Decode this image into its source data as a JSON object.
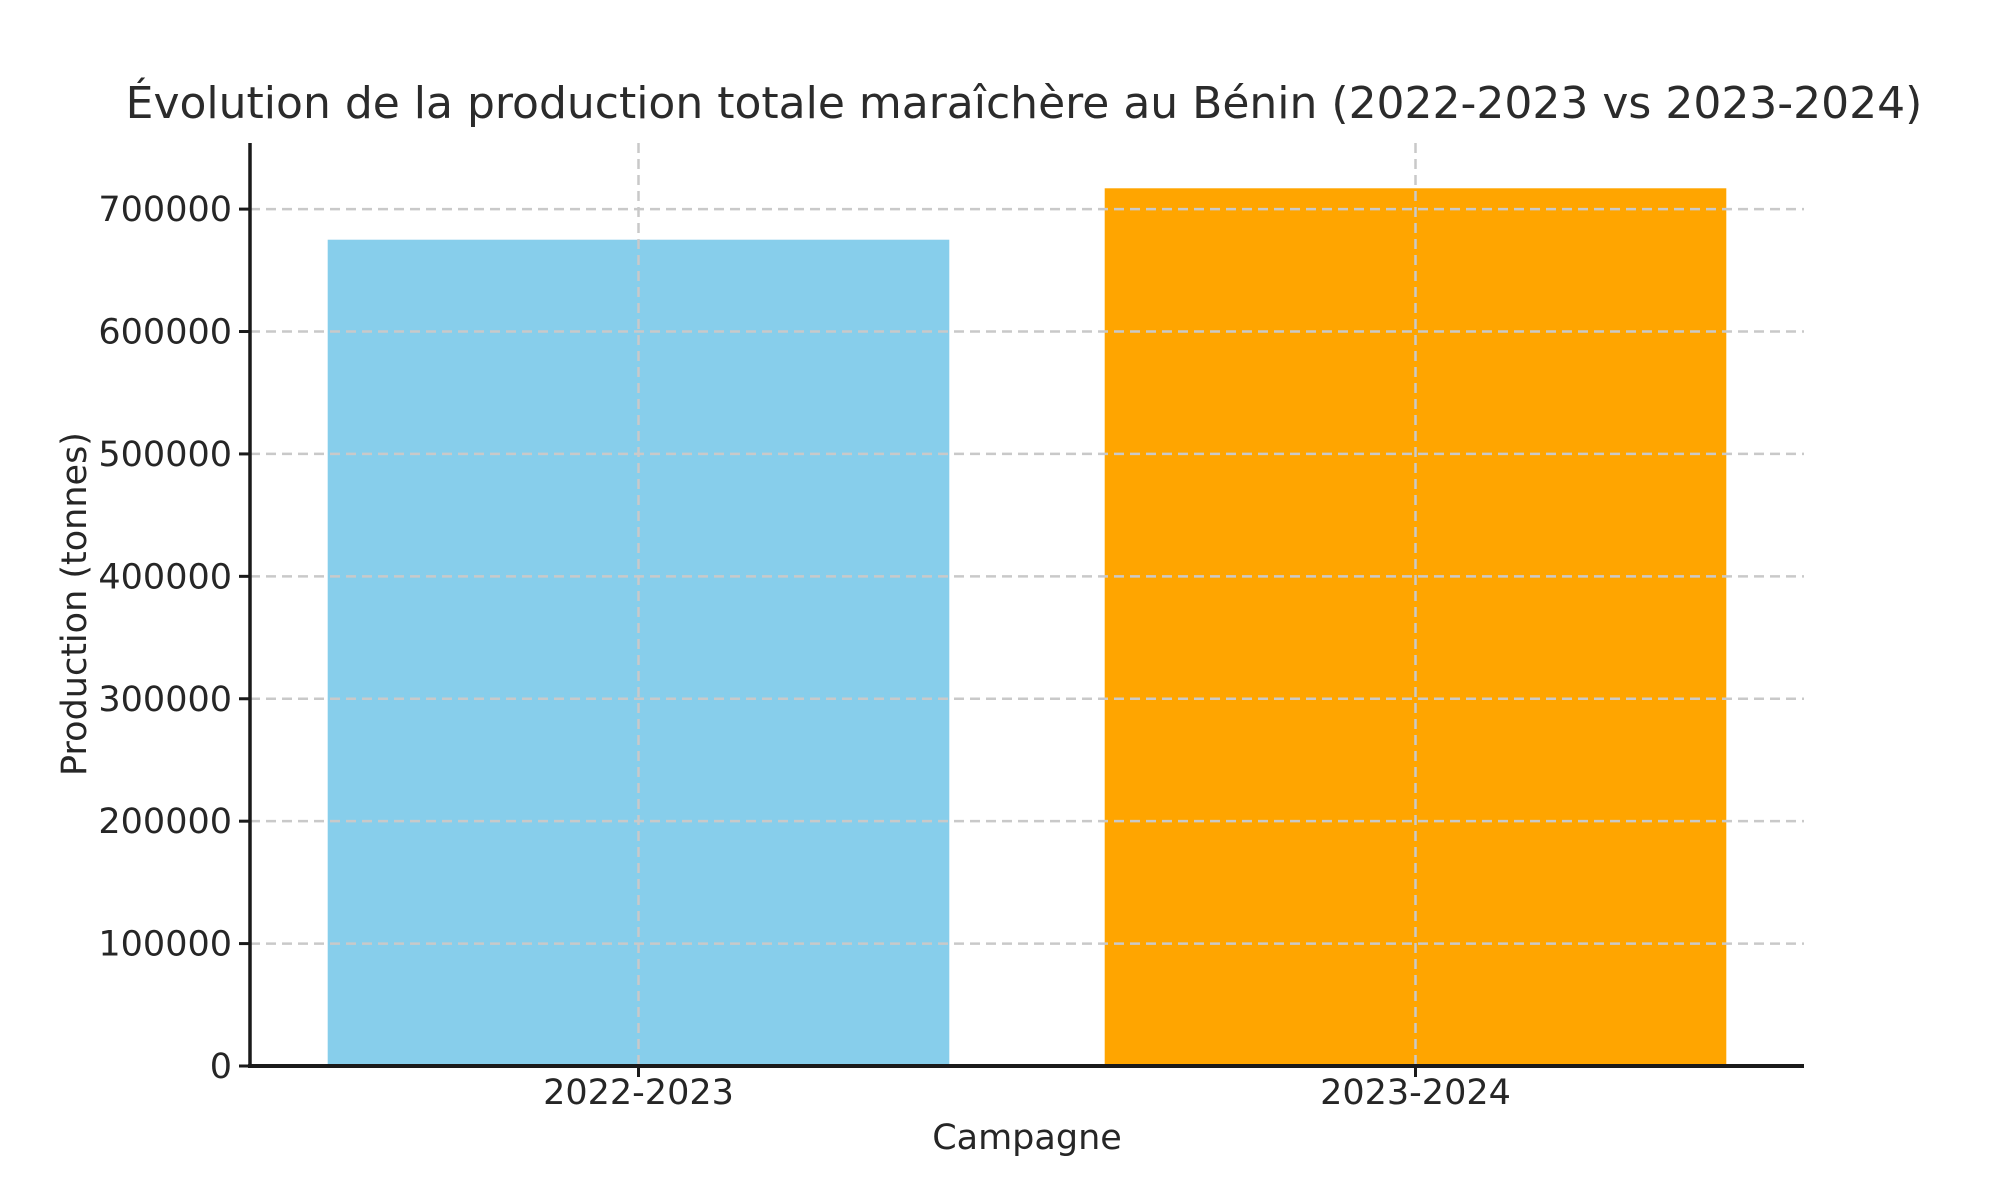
{
  "figure": {
    "background": "#ffffff"
  },
  "chart_data": {
    "type": "bar",
    "title": "Évolution de la production totale maraîchère au Bénin (2022-2023 vs 2023-2024)",
    "xlabel": "Campagne",
    "ylabel": "Production (tonnes)",
    "categories": [
      "2022-2023",
      "2023-2024"
    ],
    "values": [
      675000,
      717000
    ],
    "bar_colors": [
      "#87CEEB",
      "#FFA500"
    ],
    "ylim": [
      0,
      754000
    ],
    "yticks": [
      0,
      100000,
      200000,
      300000,
      400000,
      500000,
      600000,
      700000
    ],
    "ytick_labels": [
      "0",
      "100000",
      "200000",
      "300000",
      "400000",
      "500000",
      "600000",
      "700000"
    ],
    "grid": true,
    "grid_style": "dashed",
    "grid_over_bars": true,
    "legend": "none",
    "colors": {
      "grid": "#c9c9c9",
      "axis": "#1a1a1a",
      "text": "#262626",
      "title": "#2b2b2b"
    }
  }
}
